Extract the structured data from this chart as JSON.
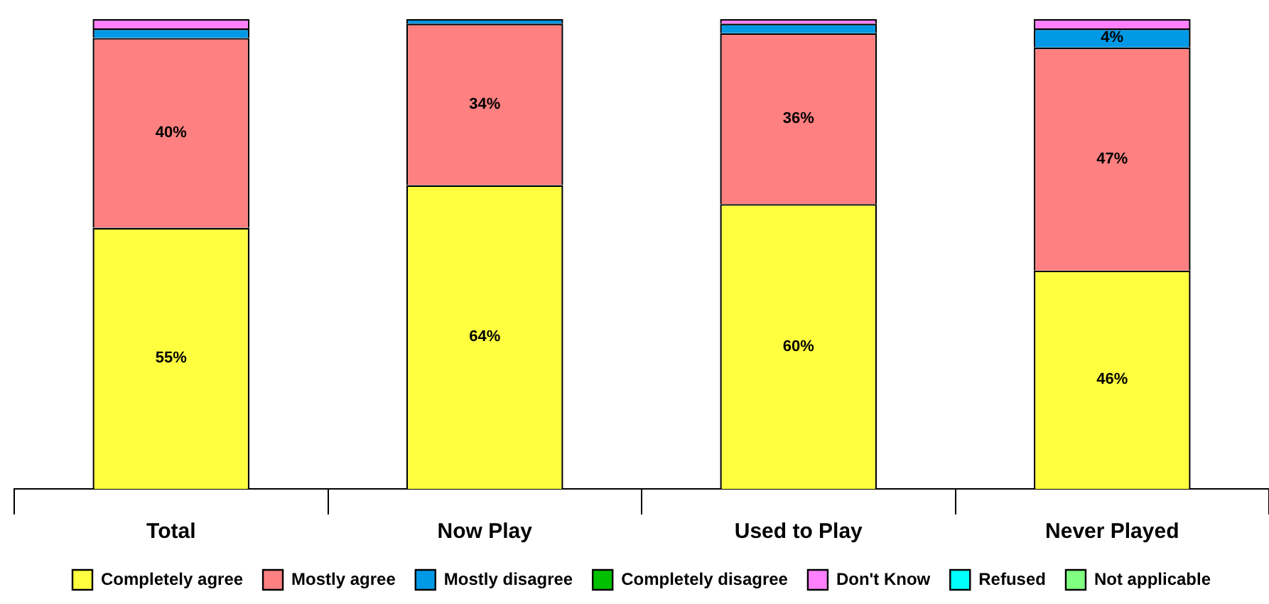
{
  "chart_data": {
    "type": "bar",
    "stacked": true,
    "categories": [
      "Total",
      "Now Play",
      "Used to Play",
      "Never Played"
    ],
    "series": [
      {
        "name": "Completely agree",
        "color": "#ffff40",
        "values": [
          55,
          64,
          60,
          46
        ],
        "value_labels": [
          "55%",
          "64%",
          "60%",
          "46%"
        ]
      },
      {
        "name": "Mostly agree",
        "color": "#ff8080",
        "values": [
          40,
          34,
          36,
          47
        ],
        "value_labels": [
          "40%",
          "34%",
          "36%",
          "47%"
        ]
      },
      {
        "name": "Mostly disagree",
        "color": "#0099e6",
        "values": [
          2,
          1,
          2,
          4
        ],
        "value_labels": [
          null,
          null,
          null,
          "4%"
        ]
      },
      {
        "name": "Completely disagree",
        "color": "#00c000",
        "values": [
          0,
          0,
          0,
          0
        ]
      },
      {
        "name": "Don't Know",
        "color": "#ff80ff",
        "values": [
          2,
          0,
          1,
          2
        ]
      },
      {
        "name": "Refused",
        "color": "#00ffff",
        "values": [
          0,
          0,
          0,
          0
        ]
      },
      {
        "name": "Not applicable",
        "color": "#80ff80",
        "values": [
          0,
          0,
          0,
          0
        ]
      }
    ],
    "ylim": [
      0,
      100
    ],
    "tick_labels": "x",
    "grid": false,
    "legend": "bottom"
  }
}
